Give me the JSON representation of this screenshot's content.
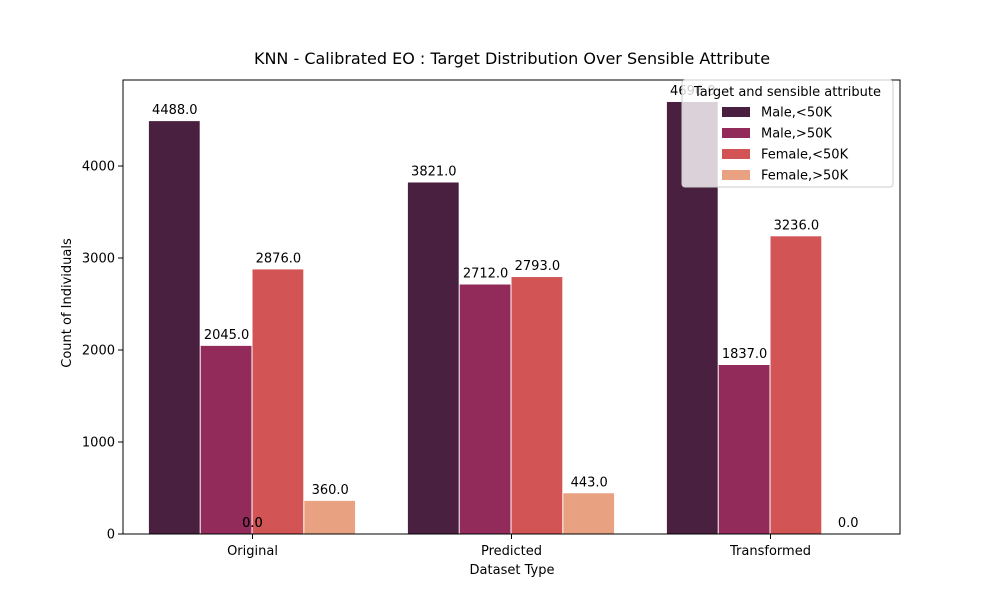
{
  "chart_data": {
    "type": "bar",
    "title": "KNN - Calibrated EO : Target Distribution Over Sensible Attribute",
    "xlabel": "Dataset Type",
    "ylabel": "Count of Individuals",
    "categories": [
      "Original",
      "Predicted",
      "Transformed"
    ],
    "ylim": [
      0,
      4935
    ],
    "yticks": [
      0,
      1000,
      2000,
      3000,
      4000
    ],
    "legend_title": "Target and sensible attribute",
    "legend_position": "top-right",
    "grid": false,
    "series": [
      {
        "name": "Male,<50K",
        "color": "#4a2040",
        "values": [
          4488.0,
          3821.0,
          4696.0
        ]
      },
      {
        "name": "Male,>50K",
        "color": "#922b59",
        "values": [
          2045.0,
          2712.0,
          1837.0
        ]
      },
      {
        "name": "Female,<50K",
        "color": "#d25455",
        "values": [
          2876.0,
          2793.0,
          3236.0
        ]
      },
      {
        "name": "Female,>50K",
        "color": "#e8a281",
        "values": [
          360.0,
          443.0,
          0.0
        ]
      }
    ],
    "data_labels": [
      [
        "4488.0",
        "3821.0",
        "4696.0"
      ],
      [
        "2045.0",
        "2712.0",
        "1837.0"
      ],
      [
        "2876.0",
        "2793.0",
        "3236.0"
      ],
      [
        "360.0",
        "443.0",
        "0.0"
      ]
    ],
    "extra_annotations": [
      "0.0",
      "0.0"
    ]
  }
}
